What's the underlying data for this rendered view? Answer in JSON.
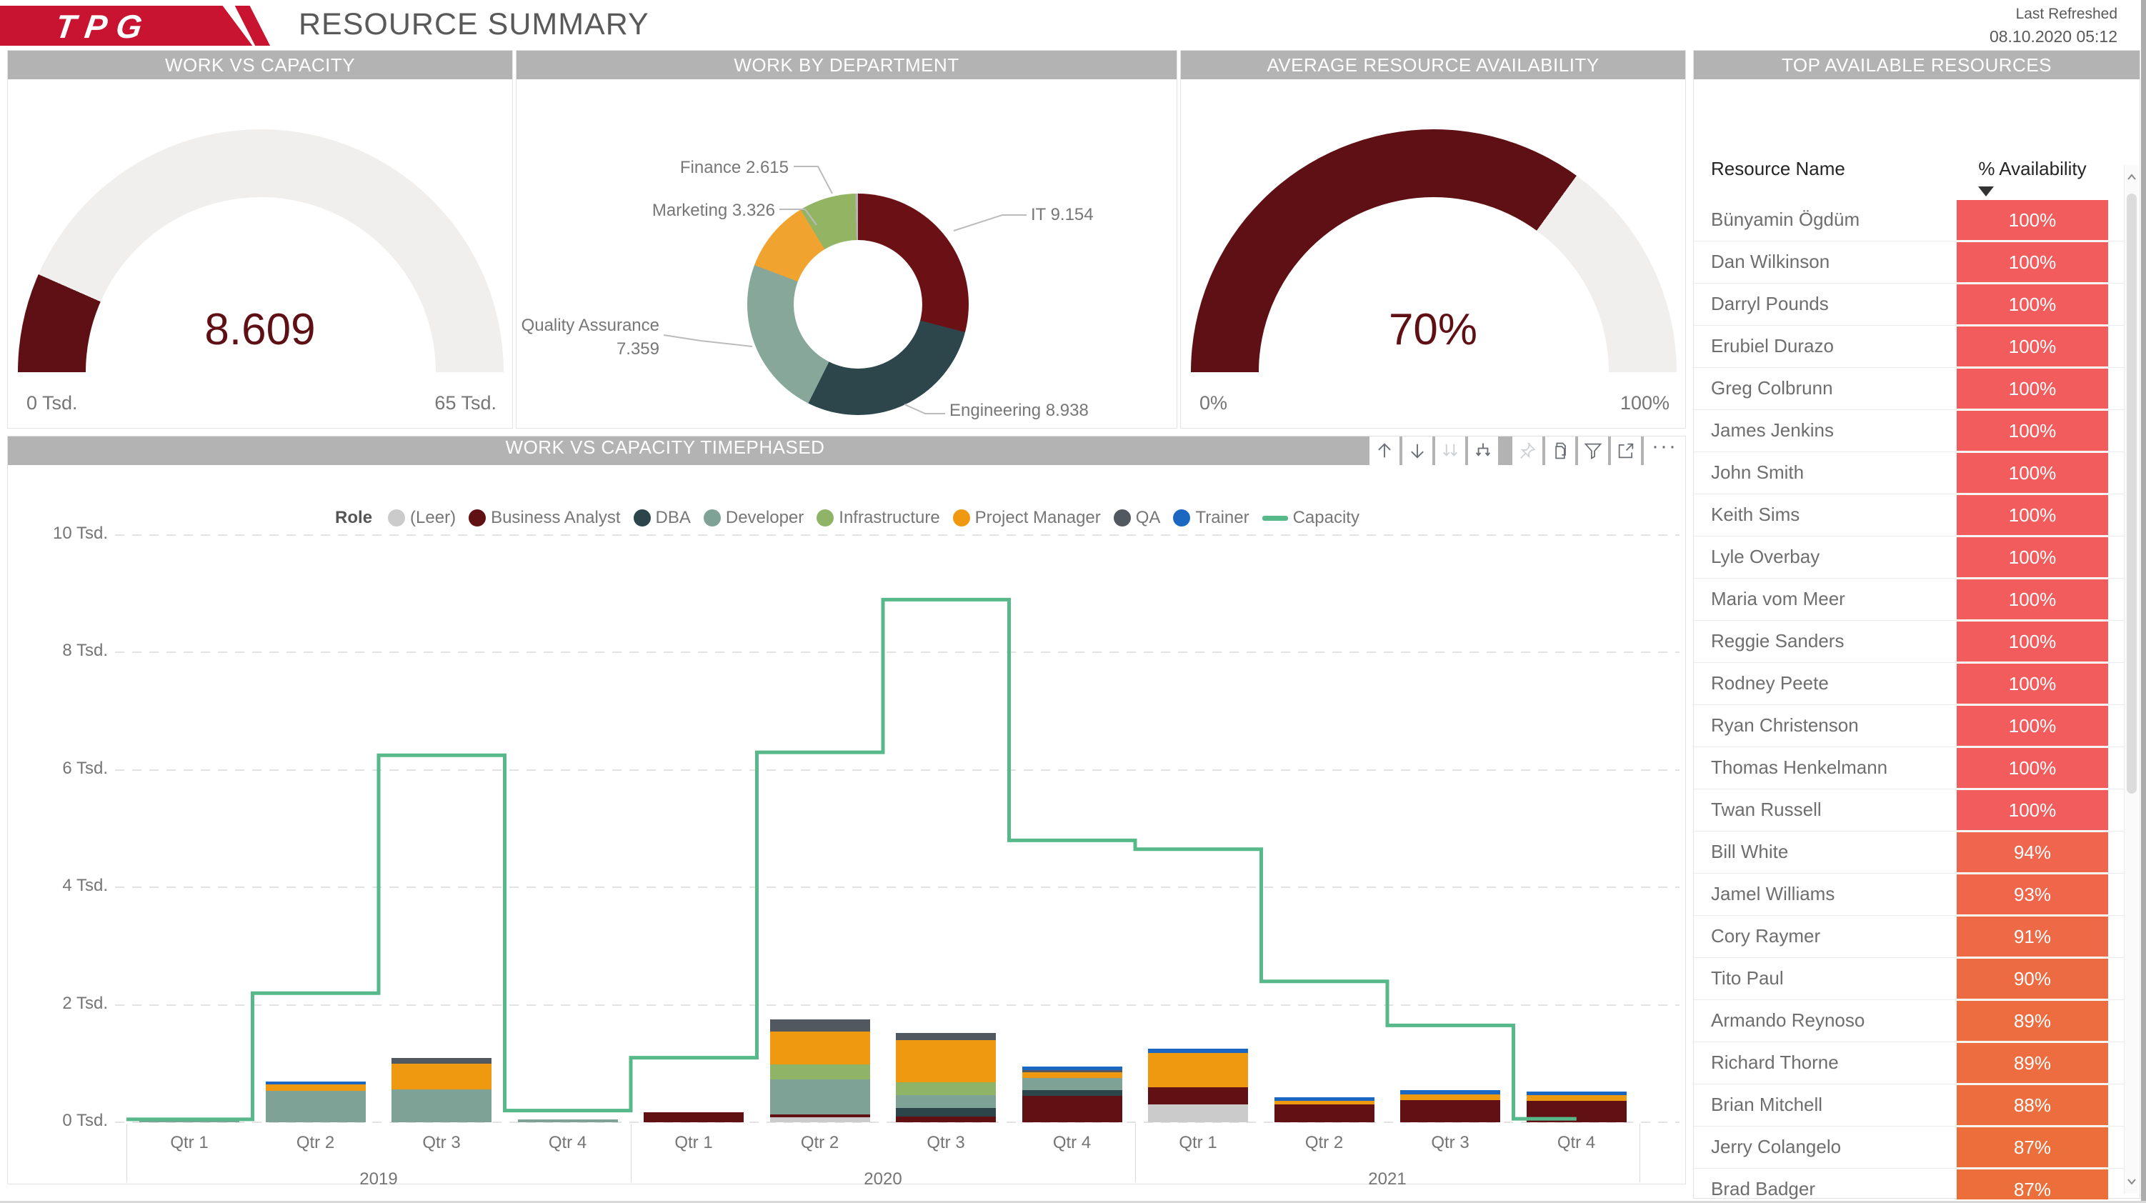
{
  "header": {
    "logo_text": "TPG",
    "title": "RESOURCE SUMMARY",
    "last_refreshed_label": "Last Refreshed",
    "last_refreshed_value": "08.10.2020 05:12"
  },
  "colors": {
    "logo_red": "#C81430",
    "panel_header_bg": "#B3B3B3",
    "maroon": "#5E1014",
    "gauge_track": "#F1EFED",
    "capacity_green": "#57B98A",
    "table_value_high": "#F25C5C",
    "table_value_low": "#EC6F3B"
  },
  "panels": {
    "work_vs_capacity": {
      "title": "WORK VS CAPACITY"
    },
    "work_by_department": {
      "title": "WORK BY DEPARTMENT"
    },
    "avg_availability": {
      "title": "AVERAGE RESOURCE AVAILABILITY"
    },
    "top_resources": {
      "title": "TOP AVAILABLE RESOURCES",
      "col1": "Resource Name",
      "col2": "% Availability",
      "rows": [
        {
          "name": "Bünyamin Ögdüm",
          "pct": 100,
          "display": "100%"
        },
        {
          "name": "Dan Wilkinson",
          "pct": 100,
          "display": "100%"
        },
        {
          "name": "Darryl Pounds",
          "pct": 100,
          "display": "100%"
        },
        {
          "name": "Erubiel Durazo",
          "pct": 100,
          "display": "100%"
        },
        {
          "name": "Greg Colbrunn",
          "pct": 100,
          "display": "100%"
        },
        {
          "name": "James Jenkins",
          "pct": 100,
          "display": "100%"
        },
        {
          "name": "John Smith",
          "pct": 100,
          "display": "100%"
        },
        {
          "name": "Keith Sims",
          "pct": 100,
          "display": "100%"
        },
        {
          "name": "Lyle Overbay",
          "pct": 100,
          "display": "100%"
        },
        {
          "name": "Maria vom Meer",
          "pct": 100,
          "display": "100%"
        },
        {
          "name": "Reggie Sanders",
          "pct": 100,
          "display": "100%"
        },
        {
          "name": "Rodney Peete",
          "pct": 100,
          "display": "100%"
        },
        {
          "name": "Ryan Christenson",
          "pct": 100,
          "display": "100%"
        },
        {
          "name": "Thomas Henkelmann",
          "pct": 100,
          "display": "100%"
        },
        {
          "name": "Twan Russell",
          "pct": 100,
          "display": "100%"
        },
        {
          "name": "Bill White",
          "pct": 94,
          "display": "94%"
        },
        {
          "name": "Jamel Williams",
          "pct": 93,
          "display": "93%"
        },
        {
          "name": "Cory Raymer",
          "pct": 91,
          "display": "91%"
        },
        {
          "name": "Tito Paul",
          "pct": 90,
          "display": "90%"
        },
        {
          "name": "Armando Reynoso",
          "pct": 89,
          "display": "89%"
        },
        {
          "name": "Richard Thorne",
          "pct": 89,
          "display": "89%"
        },
        {
          "name": "Brian Mitchell",
          "pct": 88,
          "display": "88%"
        },
        {
          "name": "Jerry Colangelo",
          "pct": 87,
          "display": "87%"
        },
        {
          "name": "Brad Badger",
          "pct": 87,
          "display": "87%"
        }
      ]
    },
    "timephased": {
      "title": "WORK VS CAPACITY TIMEPHASED",
      "legend_title": "Role",
      "toolbar": [
        "drill-up",
        "drill-down",
        "expand-next-level",
        "expand-all",
        "pin",
        "copy",
        "filter",
        "focus-mode",
        "more-options"
      ],
      "more_label": "···"
    }
  },
  "chart_data": [
    {
      "id": "work-vs-capacity-gauge",
      "type": "gauge",
      "title": "WORK VS CAPACITY",
      "display": "8.609",
      "value": 8609,
      "min": 0,
      "max": 65000,
      "min_label": "0 Tsd.",
      "max_label": "65 Tsd.",
      "fraction": 0.132,
      "fill_color": "#5E1014",
      "track_color": "#F1EFED"
    },
    {
      "id": "work-by-department-donut",
      "type": "pie",
      "title": "WORK BY DEPARTMENT",
      "slices": [
        {
          "label": "IT",
          "value": 9.154,
          "display": "IT 9.154",
          "color": "#6B1014"
        },
        {
          "label": "Engineering",
          "value": 8.938,
          "display": "Engineering 8.938",
          "color": "#2C464C"
        },
        {
          "label": "Quality Assurance",
          "value": 7.359,
          "display": "Quality Assurance 7.359",
          "color": "#87A79B"
        },
        {
          "label": "Marketing",
          "value": 3.326,
          "display": "Marketing 3.326",
          "color": "#F0A42F"
        },
        {
          "label": "Finance",
          "value": 2.615,
          "display": "Finance 2.615",
          "color": "#93B563"
        },
        {
          "label": "",
          "value": 0.12,
          "display": "",
          "color": "#B5B5B5"
        }
      ]
    },
    {
      "id": "avg-availability-gauge",
      "type": "gauge",
      "title": "AVERAGE RESOURCE AVAILABILITY",
      "display": "70%",
      "value": 70,
      "min": 0,
      "max": 100,
      "min_label": "0%",
      "max_label": "100%",
      "fraction": 0.7,
      "fill_color": "#5E1014",
      "track_color": "#F1EFED"
    },
    {
      "id": "work-vs-capacity-timephased",
      "type": "bar",
      "subtype": "stacked-with-line",
      "title": "WORK VS CAPACITY TIMEPHASED",
      "unit": "Tsd.",
      "categories": [
        "Qtr 1",
        "Qtr 2",
        "Qtr 3",
        "Qtr 4",
        "Qtr 1",
        "Qtr 2",
        "Qtr 3",
        "Qtr 4",
        "Qtr 1",
        "Qtr 2",
        "Qtr 3",
        "Qtr 4"
      ],
      "year_groups": [
        {
          "label": "2019",
          "span": 4
        },
        {
          "label": "2020",
          "span": 4
        },
        {
          "label": "2021",
          "span": 4
        }
      ],
      "ylim": [
        0,
        10
      ],
      "yticks": [
        "0 Tsd.",
        "2 Tsd.",
        "4 Tsd.",
        "6 Tsd.",
        "8 Tsd.",
        "10 Tsd."
      ],
      "grid": true,
      "legend_position": "top",
      "series": [
        {
          "name": "(Leer)",
          "color": "#CBCBCB",
          "values": [
            0,
            0,
            0,
            0,
            0,
            0.09,
            0,
            0,
            0.3,
            0,
            0,
            0
          ]
        },
        {
          "name": "Business Analyst",
          "color": "#611014",
          "values": [
            0,
            0,
            0,
            0,
            0.17,
            0.04,
            0.1,
            0.45,
            0.3,
            0.3,
            0.38,
            0.36
          ]
        },
        {
          "name": "DBA",
          "color": "#2C454B",
          "values": [
            0,
            0,
            0,
            0,
            0,
            0,
            0.14,
            0.1,
            0,
            0,
            0,
            0
          ]
        },
        {
          "name": "Developer",
          "color": "#7FA296",
          "values": [
            0.05,
            0.53,
            0.56,
            0.05,
            0,
            0.6,
            0.22,
            0.2,
            0,
            0,
            0,
            0
          ]
        },
        {
          "name": "Infrastructure",
          "color": "#8FB468",
          "values": [
            0,
            0,
            0,
            0,
            0,
            0.26,
            0.22,
            0,
            0,
            0,
            0,
            0
          ]
        },
        {
          "name": "Project Manager",
          "color": "#EF9910",
          "values": [
            0,
            0.11,
            0.44,
            0,
            0,
            0.56,
            0.72,
            0.1,
            0.58,
            0.07,
            0.1,
            0.1
          ]
        },
        {
          "name": "QA",
          "color": "#515860",
          "values": [
            0,
            0,
            0.1,
            0,
            0,
            0.2,
            0.12,
            0.04,
            0,
            0,
            0,
            0
          ]
        },
        {
          "name": "Trainer",
          "color": "#1B67C1",
          "values": [
            0,
            0.05,
            0,
            0,
            0,
            0,
            0,
            0.06,
            0.07,
            0.06,
            0.07,
            0.06
          ]
        }
      ],
      "capacity_line": {
        "name": "Capacity",
        "color": "#57B98A",
        "values": [
          0.05,
          2.2,
          6.25,
          0.2,
          1.1,
          6.3,
          8.9,
          4.8,
          4.65,
          2.4,
          1.65,
          0.06
        ]
      }
    }
  ]
}
